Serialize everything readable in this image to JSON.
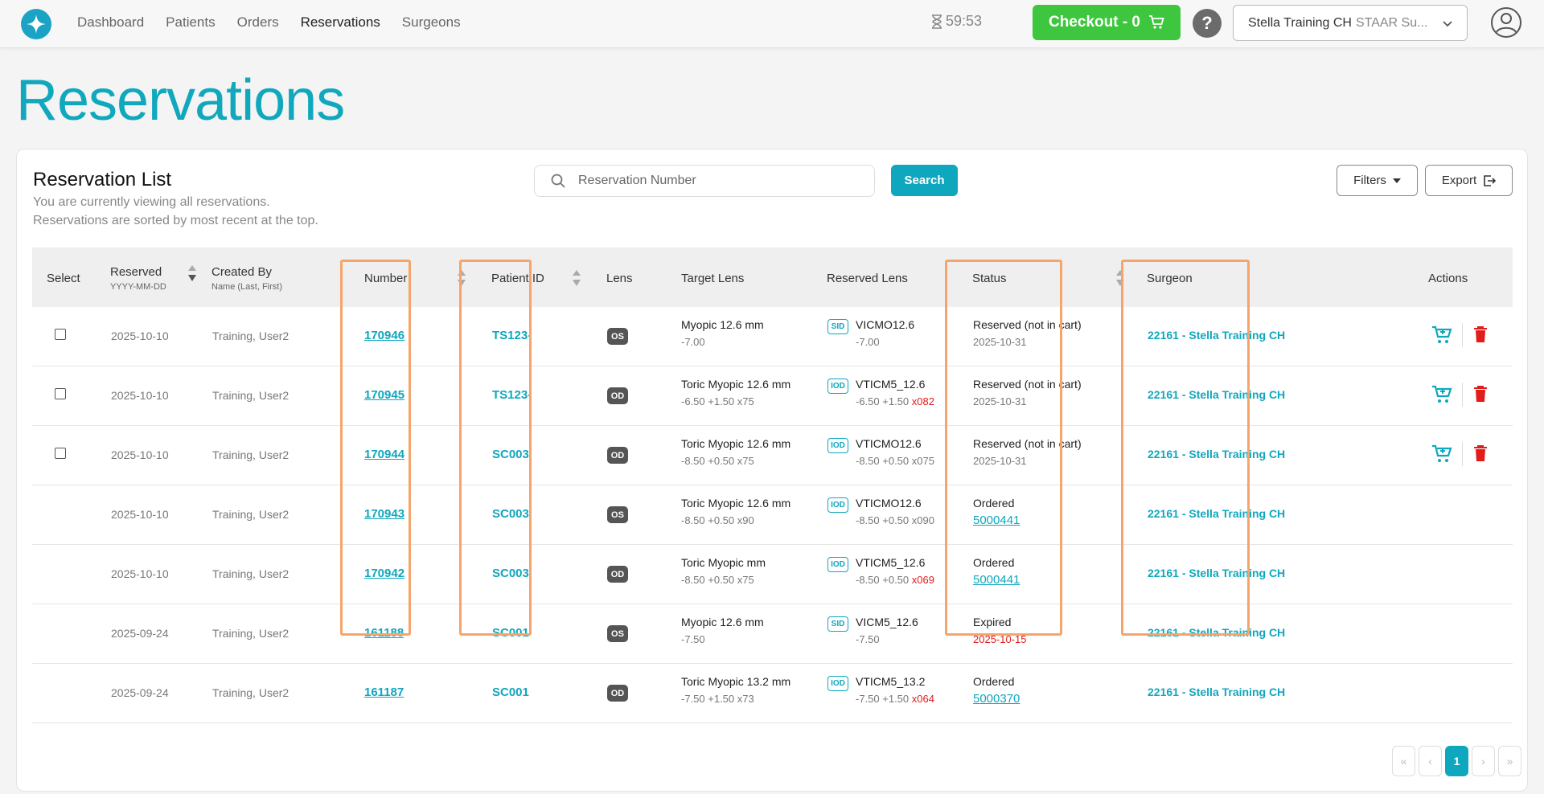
{
  "nav": {
    "items": [
      {
        "label": "Dashboard"
      },
      {
        "label": "Patients"
      },
      {
        "label": "Orders"
      },
      {
        "label": "Reservations"
      },
      {
        "label": "Surgeons"
      }
    ],
    "active": "Reservations"
  },
  "timer": "59:53",
  "checkout_label": "Checkout - 0",
  "help_label": "?",
  "account": {
    "name": "Stella Training CH",
    "suffix": "STAAR Su..."
  },
  "page_title": "Reservations",
  "list": {
    "title": "Reservation List",
    "subtitle1": "You are currently viewing all reservations.",
    "subtitle2": "Reservations are sorted by most recent at the top.",
    "search_placeholder": "Reservation Number",
    "search_label": "Search",
    "filters_label": "Filters",
    "export_label": "Export"
  },
  "columns": {
    "select": "Select",
    "reserved": "Reserved",
    "reserved_sub": "YYYY-MM-DD",
    "created_by": "Created By",
    "created_by_sub": "Name (Last, First)",
    "number": "Number",
    "patient_id": "Patient ID",
    "lens": "Lens",
    "target_lens": "Target Lens",
    "reserved_lens": "Reserved Lens",
    "status": "Status",
    "surgeon": "Surgeon",
    "actions": "Actions"
  },
  "rows": [
    {
      "reserved": "2025-10-10",
      "created_by": "Training, User2",
      "number": "170946",
      "patient_id": "TS123-",
      "eye": "OS",
      "target_name": "Myopic 12.6 mm",
      "target_power": "-7.00",
      "lens_type": "SID",
      "reserved_name": "VICMO12.6",
      "reserved_power": "-7.00",
      "reserved_extra": "",
      "status": "Reserved (not in cart)",
      "status_detail": "2025-10-31",
      "surgeon": "22161 - Stella Training CH"
    },
    {
      "reserved": "2025-10-10",
      "created_by": "Training, User2",
      "number": "170945",
      "patient_id": "TS123-",
      "eye": "OD",
      "target_name": "Toric Myopic 12.6 mm",
      "target_power": "-6.50 +1.50 x75",
      "lens_type": "IOD",
      "reserved_name": "VTICM5_12.6",
      "reserved_power": "-6.50 +1.50",
      "reserved_extra": "x082",
      "status": "Reserved (not in cart)",
      "status_detail": "2025-10-31",
      "surgeon": "22161 - Stella Training CH"
    },
    {
      "reserved": "2025-10-10",
      "created_by": "Training, User2",
      "number": "170944",
      "patient_id": "SC003",
      "eye": "OD",
      "target_name": "Toric Myopic 12.6 mm",
      "target_power": "-8.50 +0.50 x75",
      "lens_type": "IOD",
      "reserved_name": "VTICMO12.6",
      "reserved_power": "-8.50 +0.50 x075",
      "reserved_extra": "",
      "status": "Reserved (not in cart)",
      "status_detail": "2025-10-31",
      "surgeon": "22161 - Stella Training CH"
    },
    {
      "reserved": "2025-10-10",
      "created_by": "Training, User2",
      "number": "170943",
      "patient_id": "SC003",
      "eye": "OS",
      "target_name": "Toric Myopic 12.6 mm",
      "target_power": "-8.50 +0.50 x90",
      "lens_type": "IOD",
      "reserved_name": "VTICMO12.6",
      "reserved_power": "-8.50 +0.50 x090",
      "reserved_extra": "",
      "status": "Ordered",
      "status_detail": "5000441",
      "surgeon": "22161 - Stella Training CH"
    },
    {
      "reserved": "2025-10-10",
      "created_by": "Training, User2",
      "number": "170942",
      "patient_id": "SC003",
      "eye": "OD",
      "target_name": "Toric Myopic mm",
      "target_power": "-8.50 +0.50 x75",
      "lens_type": "IOD",
      "reserved_name": "VTICM5_12.6",
      "reserved_power": "-8.50 +0.50",
      "reserved_extra": "x069",
      "status": "Ordered",
      "status_detail": "5000441",
      "surgeon": "22161 - Stella Training CH"
    },
    {
      "reserved": "2025-09-24",
      "created_by": "Training, User2",
      "number": "161188",
      "patient_id": "SC001",
      "eye": "OS",
      "target_name": "Myopic 12.6 mm",
      "target_power": "-7.50",
      "lens_type": "SID",
      "reserved_name": "VICM5_12.6",
      "reserved_power": "-7.50",
      "reserved_extra": "",
      "status": "Expired",
      "status_detail": "2025-10-15",
      "surgeon": "22161 - Stella Training CH"
    },
    {
      "reserved": "2025-09-24",
      "created_by": "Training, User2",
      "number": "161187",
      "patient_id": "SC001",
      "eye": "OD",
      "target_name": "Toric Myopic 13.2 mm",
      "target_power": "-7.50 +1.50 x73",
      "lens_type": "IOD",
      "reserved_name": "VTICM5_13.2",
      "reserved_power": "-7.50 +1.50",
      "reserved_extra": "x064",
      "status": "Ordered",
      "status_detail": "5000370",
      "surgeon": "22161 - Stella Training CH"
    }
  ],
  "pagination": {
    "first": "«",
    "prev": "‹",
    "current": "1",
    "next": "›",
    "last": "»"
  }
}
